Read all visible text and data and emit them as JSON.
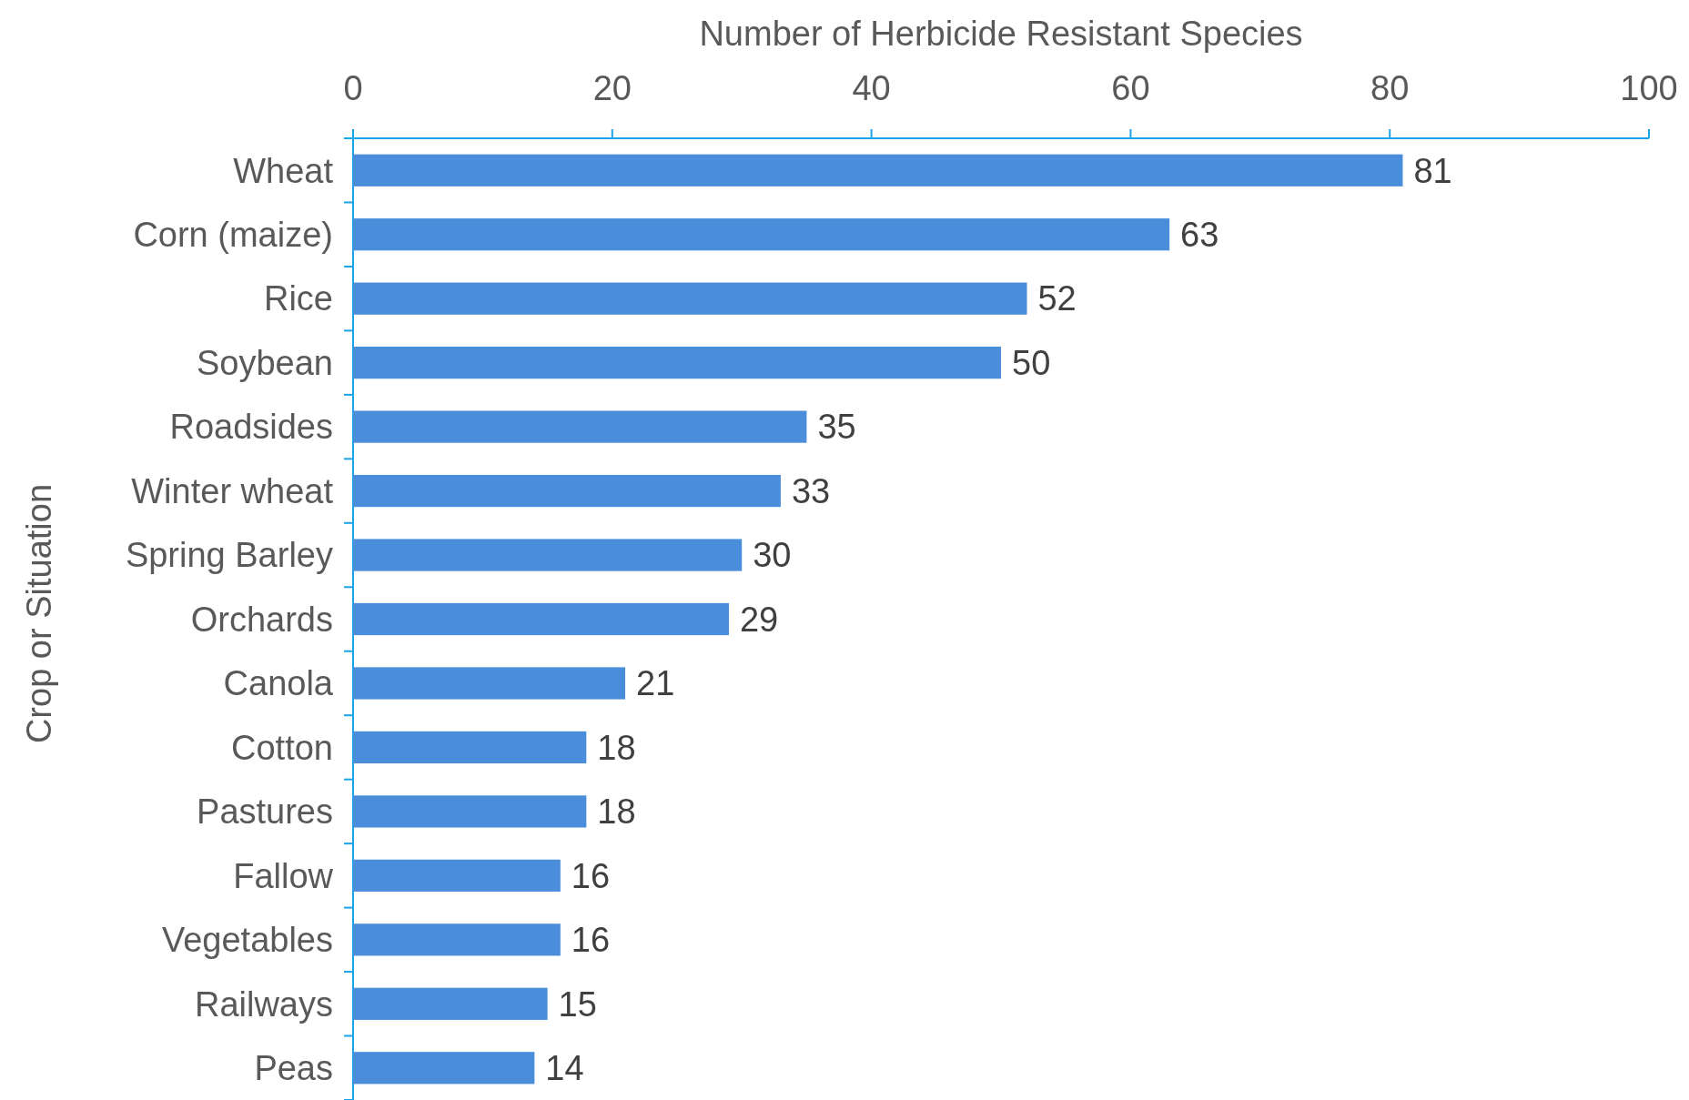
{
  "chart_data": {
    "type": "bar",
    "orientation": "horizontal",
    "xlabel": "Number of Herbicide Resistant Species",
    "ylabel": "Crop or Situation",
    "categories": [
      "Wheat",
      "Corn (maize)",
      "Rice",
      "Soybean",
      "Roadsides",
      "Winter wheat",
      "Spring Barley",
      "Orchards",
      "Canola",
      "Cotton",
      "Pastures",
      "Fallow",
      "Vegetables",
      "Railways",
      "Peas"
    ],
    "values": [
      81,
      63,
      52,
      50,
      35,
      33,
      30,
      29,
      21,
      18,
      18,
      16,
      16,
      15,
      14
    ],
    "color": "#4a8edb",
    "xlim": [
      0,
      100
    ],
    "xticks": [
      0,
      20,
      40,
      60,
      80,
      100
    ],
    "data_labels": true,
    "grid": false
  }
}
